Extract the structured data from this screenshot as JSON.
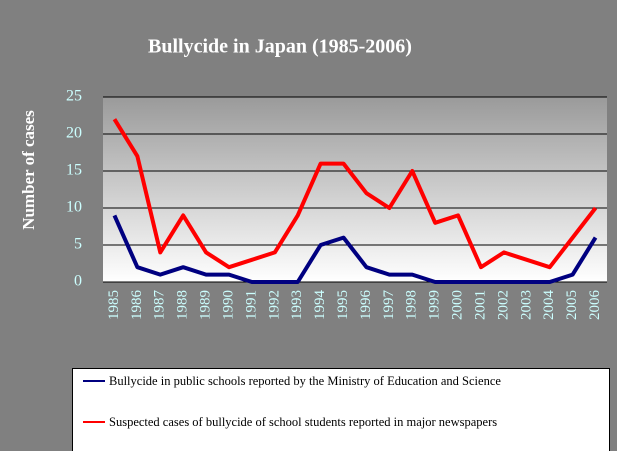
{
  "chart_data": {
    "type": "line",
    "title": "Bullycide in Japan (1985-2006)",
    "y_label": "Number of cases",
    "categories": [
      "1985",
      "1986",
      "1987",
      "1988",
      "1989",
      "1990",
      "1991",
      "1992",
      "1993",
      "1994",
      "1995",
      "1996",
      "1997",
      "1998",
      "1999",
      "2000",
      "2001",
      "2002",
      "2003",
      "2004",
      "2005",
      "2006"
    ],
    "series": [
      {
        "name": "Bullycide in public schools reported by the Ministry of Education and Science",
        "color": "#000080",
        "values": [
          9,
          2,
          1,
          2,
          1,
          1,
          0,
          0,
          0,
          5,
          6,
          2,
          1,
          1,
          0,
          0,
          0,
          0,
          0,
          0,
          1,
          6
        ]
      },
      {
        "name": "Suspected cases of bullycide of school students reported in major newspapers",
        "color": "#ff0000",
        "values": [
          22,
          17,
          4,
          9,
          4,
          2,
          3,
          4,
          9,
          16,
          16,
          12,
          10,
          15,
          8,
          9,
          2,
          4,
          3,
          2,
          6,
          10
        ]
      }
    ],
    "ylim": [
      0,
      25
    ],
    "yticks": [
      0,
      5,
      10,
      15,
      20,
      25
    ],
    "grid": true,
    "legend": "bottom"
  }
}
